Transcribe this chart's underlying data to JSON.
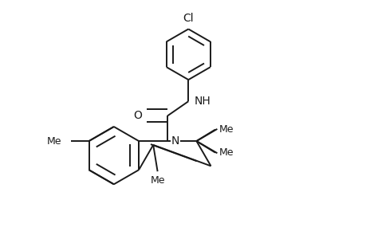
{
  "bg_color": "#ffffff",
  "line_color": "#1a1a1a",
  "line_width": 1.4,
  "font_size": 10,
  "dbo": 0.035,
  "figsize": [
    4.6,
    3.0
  ],
  "dpi": 100,
  "xlim": [
    0.05,
    0.95
  ],
  "ylim": [
    0.05,
    1.0
  ]
}
